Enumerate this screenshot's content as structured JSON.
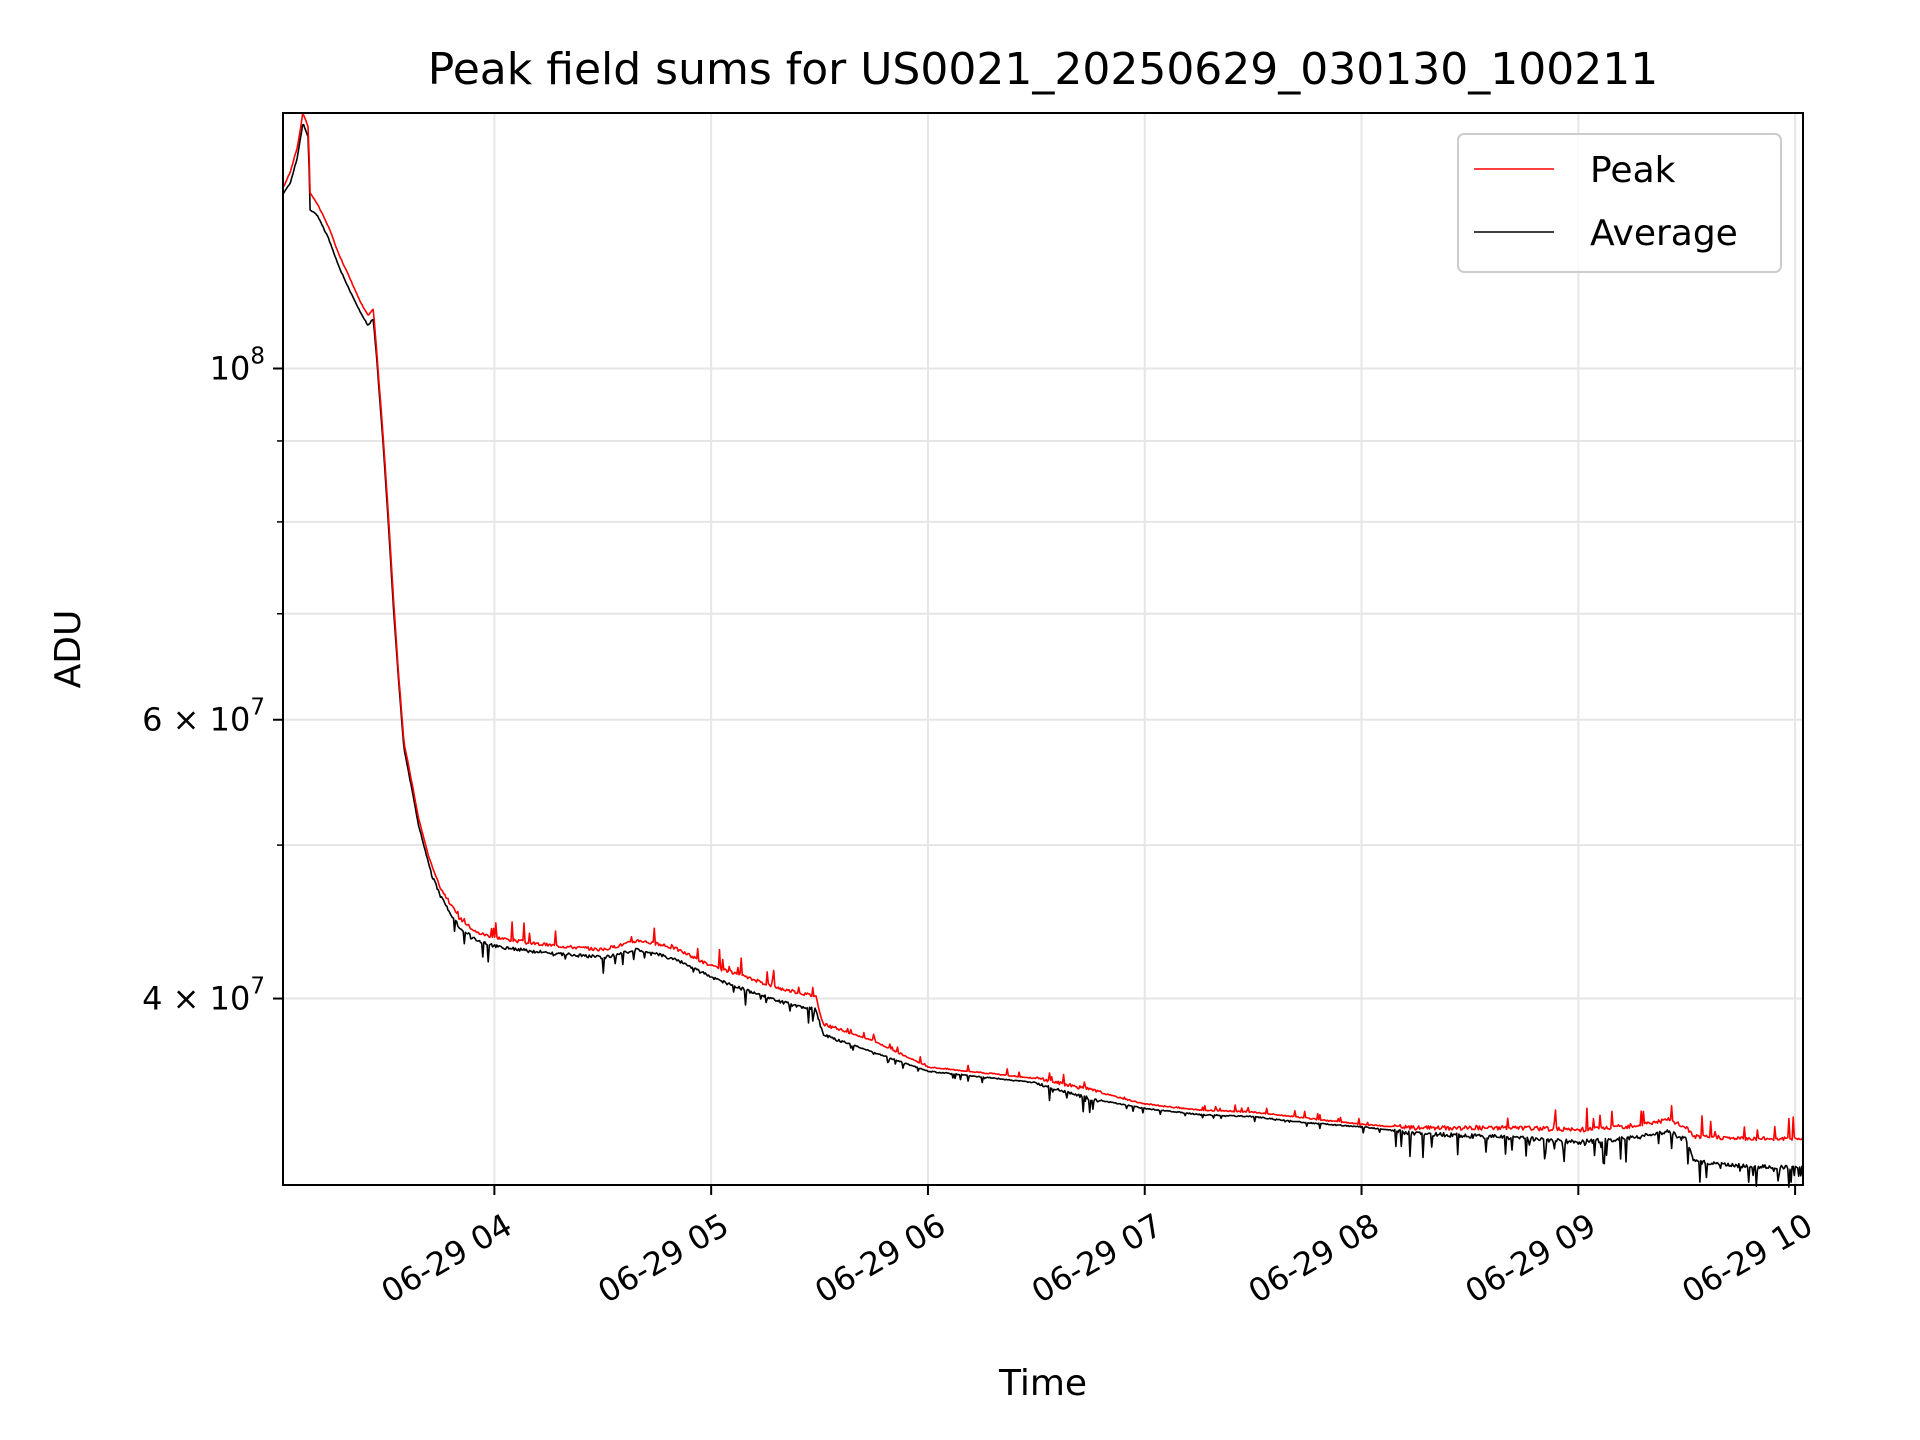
{
  "chart_data": {
    "type": "line",
    "title": "Peak field sums for US0021_20250629_030130_100211",
    "xlabel": "Time",
    "ylabel": "ADU",
    "x_axis": {
      "scale": "time",
      "start": "2025-06-29 03:01:30",
      "end": "2025-06-29 10:02:11",
      "ticks": [
        "06-29 04",
        "06-29 05",
        "06-29 06",
        "06-29 07",
        "06-29 08",
        "06-29 09",
        "06-29 10"
      ]
    },
    "y_axis": {
      "scale": "log",
      "ylim": [
        30500000,
        145000000
      ],
      "major_ticks": [
        {
          "value": 100000000,
          "mantissa": "",
          "exponent": "8"
        },
        {
          "value": 60000000,
          "mantissa": "6",
          "exponent": "7"
        },
        {
          "value": 40000000,
          "mantissa": "4",
          "exponent": "7"
        }
      ],
      "minor_ticks": [
        50000000,
        70000000,
        80000000,
        90000000
      ]
    },
    "grid": true,
    "legend_position": "top-right",
    "series": [
      {
        "name": "Peak",
        "color": "#ff0000",
        "points": [
          [
            "2025-06-29 03:01:30",
            130000000
          ],
          [
            "2025-06-29 03:03:30",
            133000000
          ],
          [
            "2025-06-29 03:05:30",
            138000000
          ],
          [
            "2025-06-29 03:07:00",
            145000000
          ],
          [
            "2025-06-29 03:08:30",
            142000000
          ],
          [
            "2025-06-29 03:09:00",
            129000000
          ],
          [
            "2025-06-29 03:11:00",
            127000000
          ],
          [
            "2025-06-29 03:14:00",
            123000000
          ],
          [
            "2025-06-29 03:17:00",
            118000000
          ],
          [
            "2025-06-29 03:20:00",
            114000000
          ],
          [
            "2025-06-29 03:23:00",
            110000000
          ],
          [
            "2025-06-29 03:25:00",
            108000000
          ],
          [
            "2025-06-29 03:26:30",
            109000000
          ],
          [
            "2025-06-29 03:27:30",
            102000000
          ],
          [
            "2025-06-29 03:29:00",
            92000000
          ],
          [
            "2025-06-29 03:30:30",
            82000000
          ],
          [
            "2025-06-29 03:32:00",
            72000000
          ],
          [
            "2025-06-29 03:33:30",
            64000000
          ],
          [
            "2025-06-29 03:35:00",
            58000000
          ],
          [
            "2025-06-29 03:37:00",
            55000000
          ],
          [
            "2025-06-29 03:39:00",
            52000000
          ],
          [
            "2025-06-29 03:42:00",
            49000000
          ],
          [
            "2025-06-29 03:45:00",
            47000000
          ],
          [
            "2025-06-29 03:50:00",
            45000000
          ],
          [
            "2025-06-29 03:55:00",
            44000000
          ],
          [
            "2025-06-29 04:00:00",
            43700000
          ],
          [
            "2025-06-29 04:10:00",
            43300000
          ],
          [
            "2025-06-29 04:20:00",
            43100000
          ],
          [
            "2025-06-29 04:30:00",
            42900000
          ],
          [
            "2025-06-29 04:40:00",
            43500000
          ],
          [
            "2025-06-29 04:50:00",
            43000000
          ],
          [
            "2025-06-29 05:00:00",
            41900000
          ],
          [
            "2025-06-29 05:10:00",
            41200000
          ],
          [
            "2025-06-29 05:20:00",
            40500000
          ],
          [
            "2025-06-29 05:29:00",
            40100000
          ],
          [
            "2025-06-29 05:31:00",
            38500000
          ],
          [
            "2025-06-29 05:45:00",
            37600000
          ],
          [
            "2025-06-29 06:00:00",
            36200000
          ],
          [
            "2025-06-29 06:15:00",
            35900000
          ],
          [
            "2025-06-29 06:30:00",
            35600000
          ],
          [
            "2025-06-29 06:45:00",
            35000000
          ],
          [
            "2025-06-29 07:00:00",
            34300000
          ],
          [
            "2025-06-29 07:15:00",
            34000000
          ],
          [
            "2025-06-29 07:30:00",
            33900000
          ],
          [
            "2025-06-29 07:45:00",
            33600000
          ],
          [
            "2025-06-29 08:00:00",
            33300000
          ],
          [
            "2025-06-29 08:15:00",
            33100000
          ],
          [
            "2025-06-29 08:30:00",
            33100000
          ],
          [
            "2025-06-29 08:45:00",
            33100000
          ],
          [
            "2025-06-29 09:00:00",
            33000000
          ],
          [
            "2025-06-29 09:15:00",
            33200000
          ],
          [
            "2025-06-29 09:25:00",
            33500000
          ],
          [
            "2025-06-29 09:30:00",
            33100000
          ],
          [
            "2025-06-29 09:32:00",
            32700000
          ],
          [
            "2025-06-29 09:45:00",
            32600000
          ],
          [
            "2025-06-29 10:02:11",
            32600000
          ]
        ]
      },
      {
        "name": "Average",
        "color": "#000000",
        "points": [
          [
            "2025-06-29 03:01:30",
            129000000
          ],
          [
            "2025-06-29 03:03:30",
            131000000
          ],
          [
            "2025-06-29 03:05:30",
            136000000
          ],
          [
            "2025-06-29 03:07:00",
            143000000
          ],
          [
            "2025-06-29 03:08:30",
            140000000
          ],
          [
            "2025-06-29 03:09:00",
            126000000
          ],
          [
            "2025-06-29 03:11:00",
            125000000
          ],
          [
            "2025-06-29 03:14:00",
            121000000
          ],
          [
            "2025-06-29 03:17:00",
            116000000
          ],
          [
            "2025-06-29 03:20:00",
            112000000
          ],
          [
            "2025-06-29 03:23:00",
            108500000
          ],
          [
            "2025-06-29 03:25:00",
            106500000
          ],
          [
            "2025-06-29 03:26:30",
            107500000
          ],
          [
            "2025-06-29 03:27:30",
            101000000
          ],
          [
            "2025-06-29 03:29:00",
            91000000
          ],
          [
            "2025-06-29 03:30:30",
            81000000
          ],
          [
            "2025-06-29 03:32:00",
            71000000
          ],
          [
            "2025-06-29 03:33:30",
            63500000
          ],
          [
            "2025-06-29 03:35:00",
            57500000
          ],
          [
            "2025-06-29 03:37:00",
            54500000
          ],
          [
            "2025-06-29 03:39:00",
            51500000
          ],
          [
            "2025-06-29 03:42:00",
            48500000
          ],
          [
            "2025-06-29 03:45:00",
            46500000
          ],
          [
            "2025-06-29 03:50:00",
            44500000
          ],
          [
            "2025-06-29 03:55:00",
            43600000
          ],
          [
            "2025-06-29 04:00:00",
            43200000
          ],
          [
            "2025-06-29 04:10:00",
            42900000
          ],
          [
            "2025-06-29 04:20:00",
            42700000
          ],
          [
            "2025-06-29 04:30:00",
            42500000
          ],
          [
            "2025-06-29 04:40:00",
            43000000
          ],
          [
            "2025-06-29 04:50:00",
            42400000
          ],
          [
            "2025-06-29 05:00:00",
            41300000
          ],
          [
            "2025-06-29 05:10:00",
            40500000
          ],
          [
            "2025-06-29 05:20:00",
            39800000
          ],
          [
            "2025-06-29 05:29:00",
            39400000
          ],
          [
            "2025-06-29 05:31:00",
            38000000
          ],
          [
            "2025-06-29 05:45:00",
            37000000
          ],
          [
            "2025-06-29 06:00:00",
            36000000
          ],
          [
            "2025-06-29 06:15:00",
            35700000
          ],
          [
            "2025-06-29 06:30:00",
            35400000
          ],
          [
            "2025-06-29 06:45:00",
            34600000
          ],
          [
            "2025-06-29 07:00:00",
            34100000
          ],
          [
            "2025-06-29 07:15:00",
            33800000
          ],
          [
            "2025-06-29 07:30:00",
            33700000
          ],
          [
            "2025-06-29 07:45:00",
            33400000
          ],
          [
            "2025-06-29 08:00:00",
            33200000
          ],
          [
            "2025-06-29 08:15:00",
            32900000
          ],
          [
            "2025-06-29 08:30:00",
            32800000
          ],
          [
            "2025-06-29 08:45:00",
            32700000
          ],
          [
            "2025-06-29 09:00:00",
            32500000
          ],
          [
            "2025-06-29 09:15:00",
            32700000
          ],
          [
            "2025-06-29 09:25:00",
            33000000
          ],
          [
            "2025-06-29 09:30:00",
            32600000
          ],
          [
            "2025-06-29 09:32:00",
            31600000
          ],
          [
            "2025-06-29 09:45:00",
            31400000
          ],
          [
            "2025-06-29 10:02:11",
            31300000
          ]
        ]
      }
    ]
  }
}
